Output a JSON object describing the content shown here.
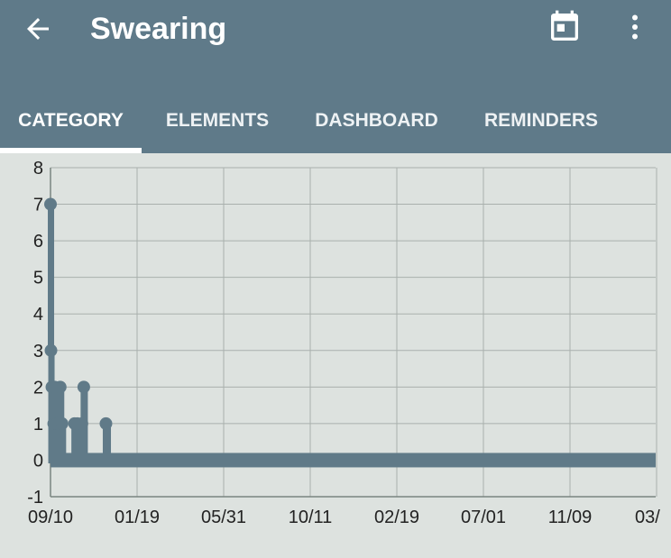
{
  "toolbar": {
    "title": "Swearing",
    "back_icon": "arrow-left-icon",
    "calendar_icon": "calendar-icon",
    "more_icon": "more-vert-icon",
    "color": "#5f7a89"
  },
  "tabs": [
    {
      "label": "CATEGORY",
      "selected": true
    },
    {
      "label": "ELEMENTS",
      "selected": false
    },
    {
      "label": "DASHBOARD",
      "selected": false
    },
    {
      "label": "REMINDERS",
      "selected": false
    }
  ],
  "chart_data": {
    "type": "line",
    "title": "",
    "xlabel": "",
    "ylabel": "",
    "ylim": [
      -1,
      8
    ],
    "yticks": [
      -1,
      0,
      1,
      2,
      3,
      4,
      5,
      6,
      7,
      8
    ],
    "xtick_labels": [
      "09/10",
      "01/19",
      "05/31",
      "10/11",
      "02/19",
      "07/01",
      "11/09",
      "03/"
    ],
    "grid": true,
    "line_color": "#607a88",
    "series": [
      {
        "x_days": [
          0,
          1,
          2,
          3,
          5,
          7,
          9,
          11,
          13,
          15,
          17,
          19,
          21,
          23,
          25,
          27,
          29,
          31,
          33,
          35,
          37,
          50,
          52,
          54,
          58,
          62,
          66,
          68,
          70,
          72,
          74,
          76,
          80,
          84,
          88,
          92,
          96,
          100,
          104,
          108,
          112,
          116,
          120,
          124,
          128,
          132,
          1310
        ],
        "values": [
          7,
          3,
          0,
          2,
          0,
          1,
          2,
          0,
          1,
          0,
          1,
          0,
          2,
          0,
          1,
          0,
          0,
          0,
          0,
          0,
          0,
          0,
          1,
          0,
          1,
          0,
          0,
          1,
          0,
          2,
          0,
          0,
          0,
          0,
          0,
          0,
          0,
          0,
          0,
          0,
          0,
          0,
          1,
          0,
          0,
          0,
          0
        ]
      }
    ]
  }
}
